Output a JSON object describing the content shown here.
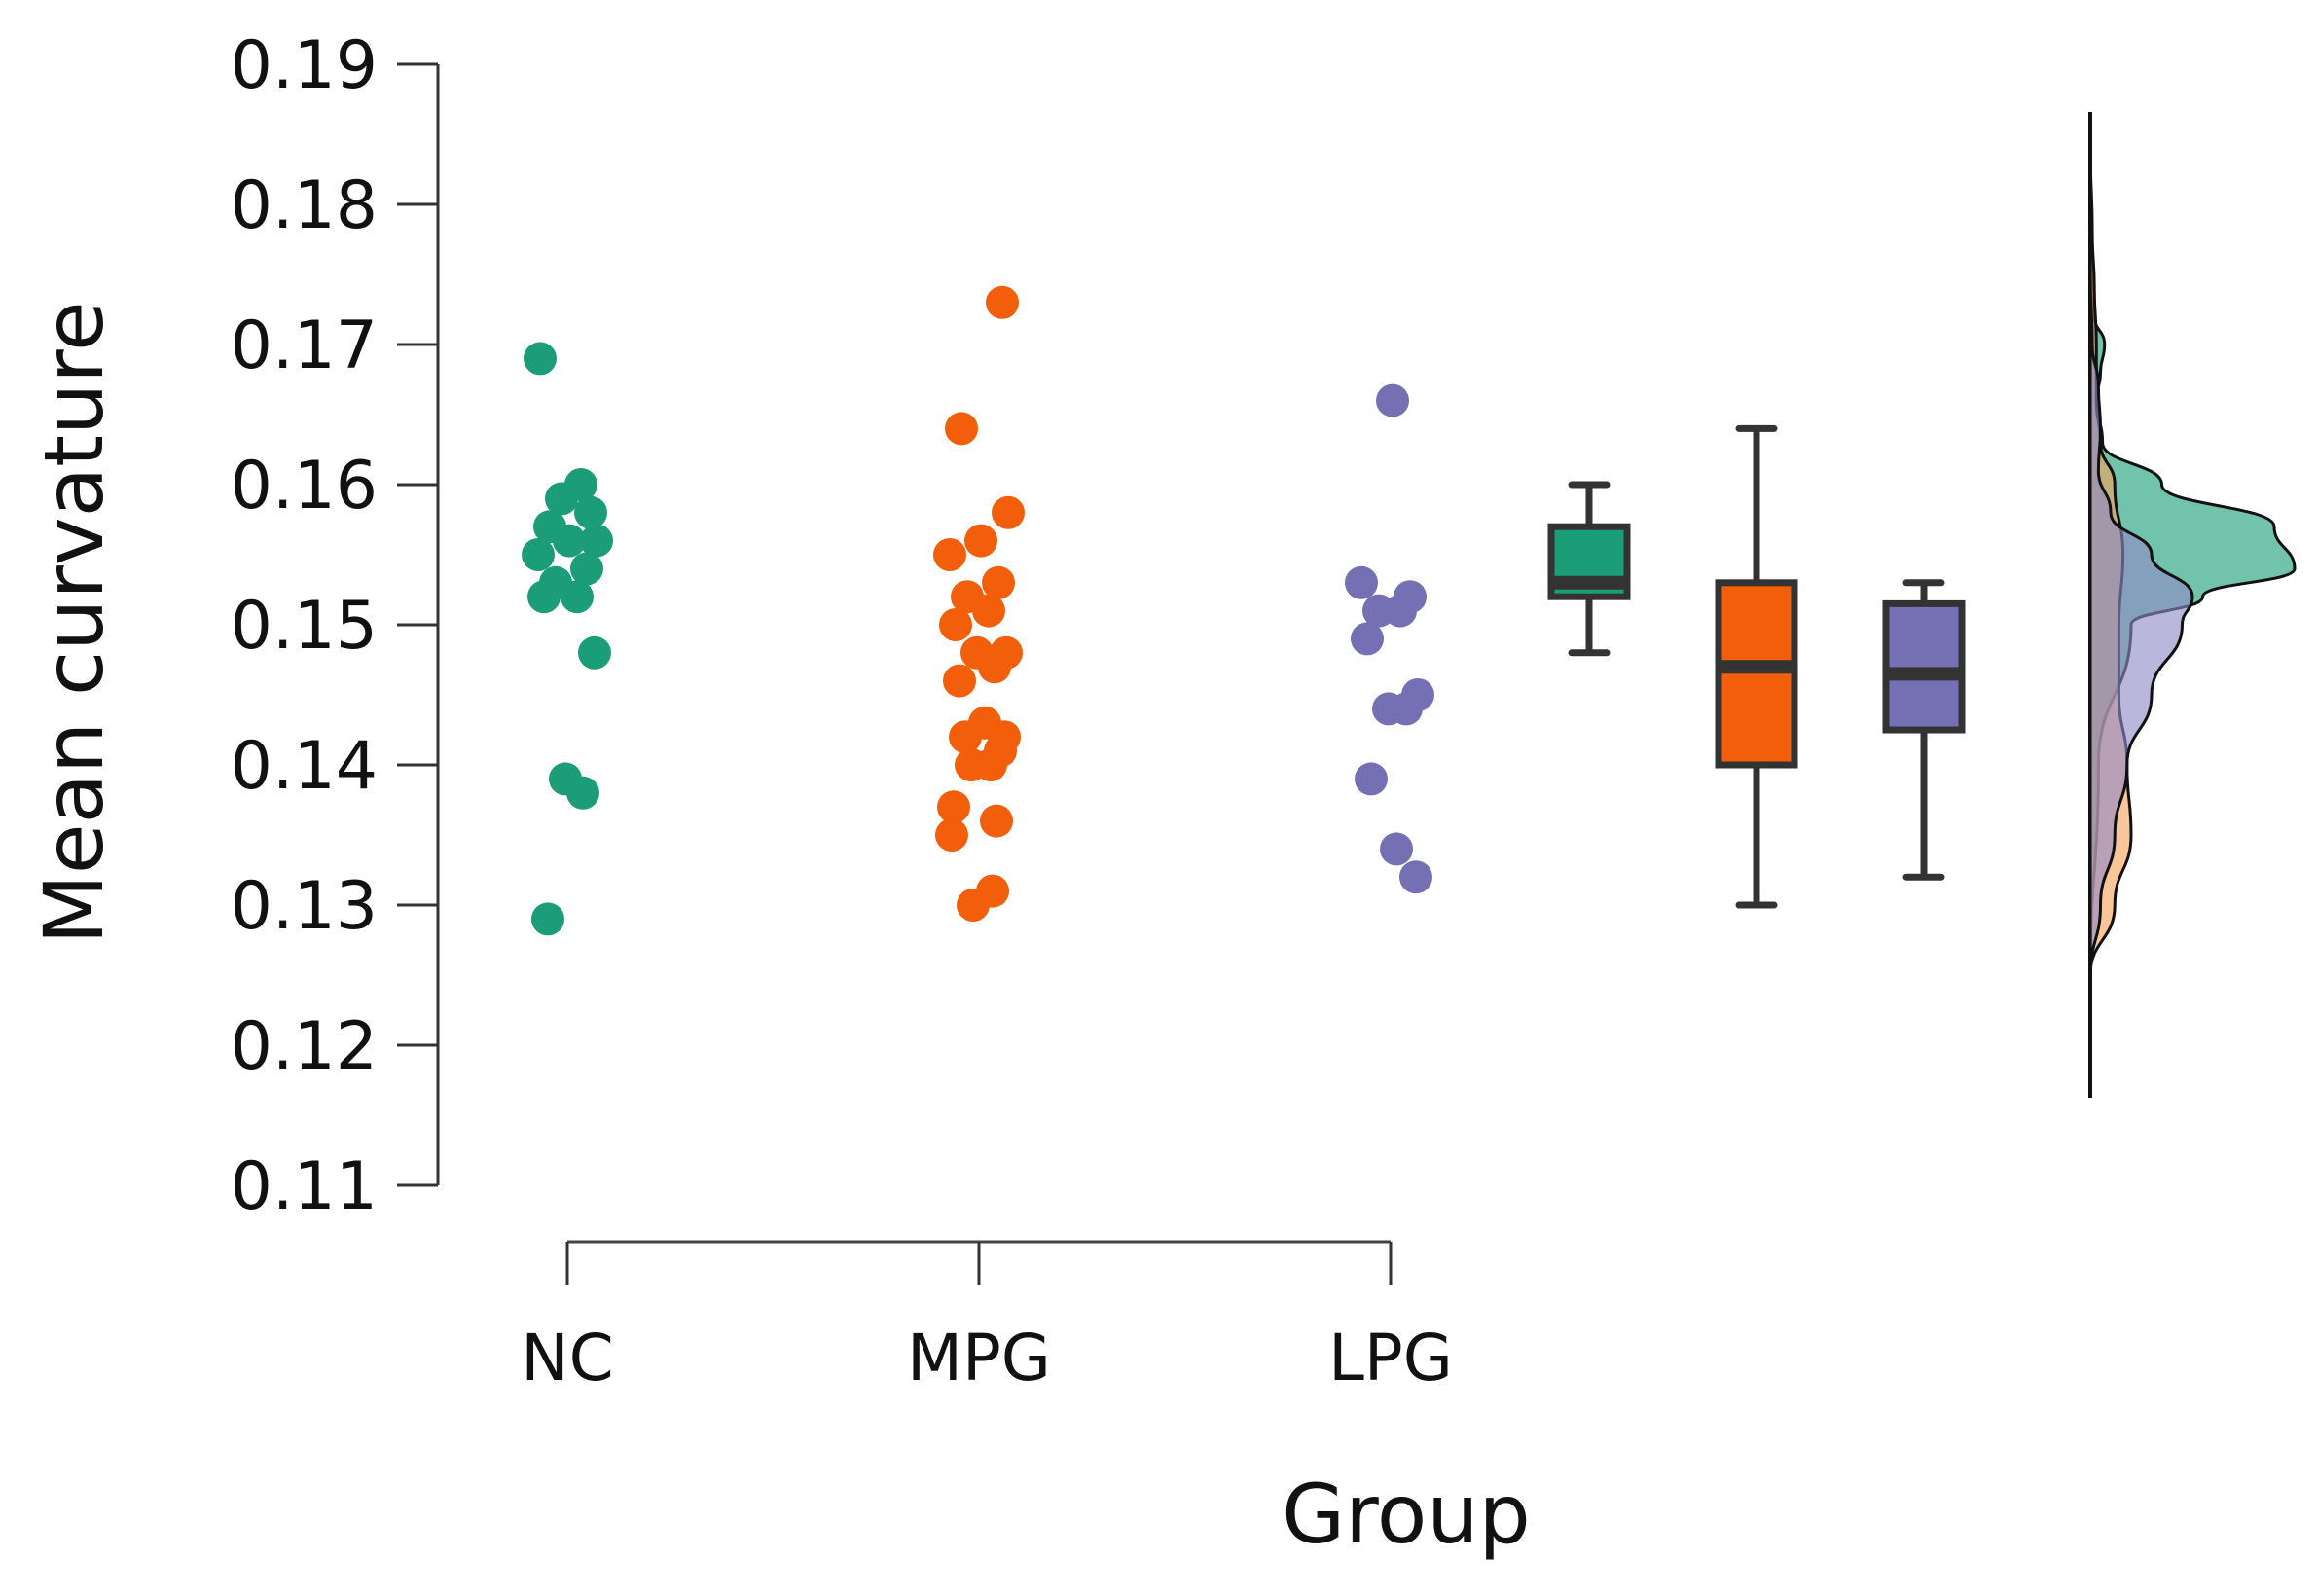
{
  "chart_data": {
    "type": "raincloud",
    "title": "",
    "xlabel": "Group",
    "ylabel": "Mean curvature",
    "ylim": [
      0.11,
      0.19
    ],
    "yticks": [
      "0.11",
      "0.12",
      "0.13",
      "0.14",
      "0.15",
      "0.16",
      "0.17",
      "0.18",
      "0.19"
    ],
    "categories": [
      "NC",
      "MPG",
      "LPG"
    ],
    "grid": false,
    "series": [
      {
        "name": "NC",
        "color": "#1b9e77",
        "points": [
          0.169,
          0.16,
          0.159,
          0.158,
          0.157,
          0.156,
          0.156,
          0.155,
          0.154,
          0.153,
          0.152,
          0.152,
          0.148,
          0.139,
          0.138,
          0.129
        ],
        "box": {
          "whisker_low": 0.148,
          "q1": 0.152,
          "median": 0.153,
          "q3": 0.157,
          "whisker_high": 0.16
        }
      },
      {
        "name": "MPG",
        "color": "#f25e0a",
        "points": [
          0.173,
          0.164,
          0.158,
          0.156,
          0.155,
          0.153,
          0.152,
          0.151,
          0.15,
          0.148,
          0.148,
          0.147,
          0.146,
          0.143,
          0.142,
          0.142,
          0.141,
          0.14,
          0.14,
          0.137,
          0.136,
          0.135,
          0.131,
          0.13
        ],
        "box": {
          "whisker_low": 0.13,
          "q1": 0.14,
          "median": 0.147,
          "q3": 0.153,
          "whisker_high": 0.164
        }
      },
      {
        "name": "LPG",
        "color": "#7570b3",
        "points": [
          0.166,
          0.153,
          0.152,
          0.151,
          0.151,
          0.149,
          0.145,
          0.144,
          0.144,
          0.139,
          0.134,
          0.132
        ],
        "box": {
          "whisker_low": 0.132,
          "q1": 0.1425,
          "median": 0.1465,
          "q3": 0.1515,
          "whisker_high": 0.153
        }
      }
    ],
    "density": [
      {
        "name": "NC",
        "color": "#1b9e77",
        "y": [
          0.125,
          0.14,
          0.15,
          0.152,
          0.154,
          0.157,
          0.16,
          0.163,
          0.166,
          0.168,
          0.17,
          0.172,
          0.176,
          0.184
        ],
        "d": [
          0.0,
          0.04,
          0.2,
          0.55,
          1.0,
          0.9,
          0.35,
          0.06,
          0.03,
          0.05,
          0.07,
          0.02,
          0.01,
          0.0
        ]
      },
      {
        "name": "MPG",
        "color": "#f6a35c",
        "y": [
          0.125,
          0.13,
          0.135,
          0.14,
          0.145,
          0.15,
          0.155,
          0.16,
          0.163,
          0.166,
          0.17,
          0.174,
          0.178,
          0.184
        ],
        "d": [
          0.0,
          0.12,
          0.2,
          0.18,
          0.14,
          0.14,
          0.16,
          0.12,
          0.05,
          0.03,
          0.03,
          0.02,
          0.01,
          0.0
        ]
      },
      {
        "name": "LPG",
        "color": "#8f8ac8",
        "y": [
          0.125,
          0.13,
          0.135,
          0.14,
          0.145,
          0.15,
          0.152,
          0.155,
          0.158,
          0.161,
          0.164,
          0.167,
          0.17,
          0.175
        ],
        "d": [
          0.0,
          0.05,
          0.12,
          0.18,
          0.3,
          0.45,
          0.5,
          0.3,
          0.1,
          0.04,
          0.05,
          0.04,
          0.01,
          0.0
        ]
      }
    ]
  }
}
